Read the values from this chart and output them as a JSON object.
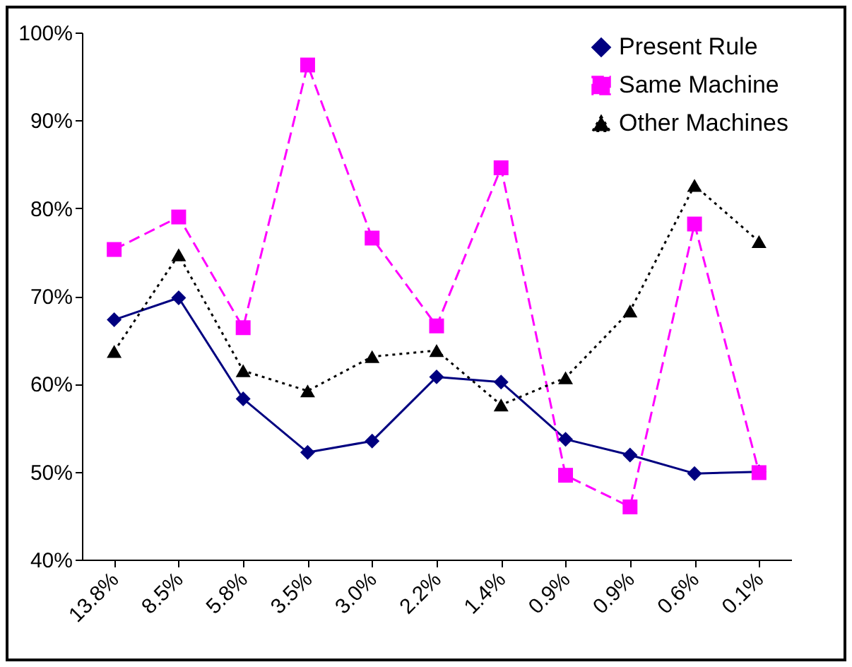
{
  "chart_data": {
    "type": "line",
    "categories": [
      "13.8%",
      "8.5%",
      "5.8%",
      "3.5%",
      "3.0%",
      "2.2%",
      "1.4%",
      "0.9%",
      "0.9%",
      "0.6%",
      "0.1%"
    ],
    "series": [
      {
        "name": "Present Rule",
        "color": "#000080",
        "marker": "diamond",
        "line_style": "solid",
        "values": [
          67.3,
          69.8,
          58.3,
          52.2,
          53.5,
          60.8,
          60.2,
          53.7,
          51.9,
          49.8,
          50.0
        ]
      },
      {
        "name": "Same Machine",
        "color": "#ff00ff",
        "marker": "square",
        "line_style": "dashed",
        "values": [
          75.3,
          79.0,
          66.4,
          96.3,
          76.6,
          66.6,
          84.6,
          49.6,
          46.0,
          78.2,
          49.9
        ]
      },
      {
        "name": "Other Machines",
        "color": "#000000",
        "marker": "triangle",
        "line_style": "dotted",
        "values": [
          63.7,
          74.7,
          61.5,
          59.2,
          63.1,
          63.8,
          57.6,
          60.7,
          68.3,
          82.6,
          76.2
        ]
      }
    ],
    "ylim": [
      40,
      100
    ],
    "yticks": [
      {
        "value": 40,
        "label": "40%"
      },
      {
        "value": 50,
        "label": "50%"
      },
      {
        "value": 60,
        "label": "60%"
      },
      {
        "value": 70,
        "label": "70%"
      },
      {
        "value": 80,
        "label": "80%"
      },
      {
        "value": 90,
        "label": "90%"
      },
      {
        "value": 100,
        "label": "100%"
      }
    ],
    "grid": false,
    "legend": "top right"
  }
}
